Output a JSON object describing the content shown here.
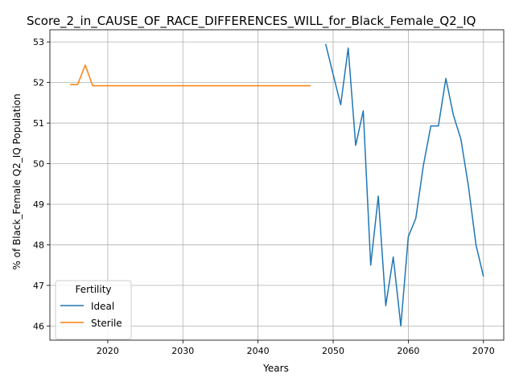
{
  "chart_data": {
    "type": "line",
    "title": "Score_2_in_CAUSE_OF_RACE_DIFFERENCES_WILL_for_Black_Female_Q2_IQ",
    "xlabel": "Years",
    "ylabel": "% of Black_Female Q2_IQ Population",
    "xlim": [
      2012.3,
      2072.7
    ],
    "ylim": [
      45.65,
      53.3
    ],
    "xticks": [
      2020,
      2030,
      2040,
      2050,
      2060,
      2070
    ],
    "yticks": [
      46,
      47,
      48,
      49,
      50,
      51,
      52,
      53
    ],
    "grid": true,
    "legend": {
      "title": "Fertility",
      "placement": "lower-left"
    },
    "series": [
      {
        "name": "Ideal",
        "color": "#1f77b4",
        "x": [
          2049,
          2050,
          2051,
          2052,
          2053,
          2054,
          2055,
          2056,
          2057,
          2058,
          2059,
          2060,
          2061,
          2062,
          2063,
          2064,
          2065,
          2066,
          2067,
          2068,
          2069,
          2070
        ],
        "y": [
          52.95,
          52.2,
          51.45,
          52.85,
          50.45,
          51.3,
          47.5,
          49.2,
          46.5,
          47.7,
          46.0,
          48.2,
          48.65,
          49.95,
          50.93,
          50.93,
          52.1,
          51.2,
          50.6,
          49.45,
          48.0,
          47.22
        ]
      },
      {
        "name": "Sterile",
        "color": "#ff7f0e",
        "x": [
          2015,
          2016,
          2017,
          2018,
          2019,
          2020,
          2025,
          2030,
          2035,
          2040,
          2045,
          2047
        ],
        "y": [
          51.95,
          51.95,
          52.43,
          51.92,
          51.92,
          51.92,
          51.92,
          51.92,
          51.92,
          51.92,
          51.92,
          51.92
        ]
      }
    ]
  }
}
